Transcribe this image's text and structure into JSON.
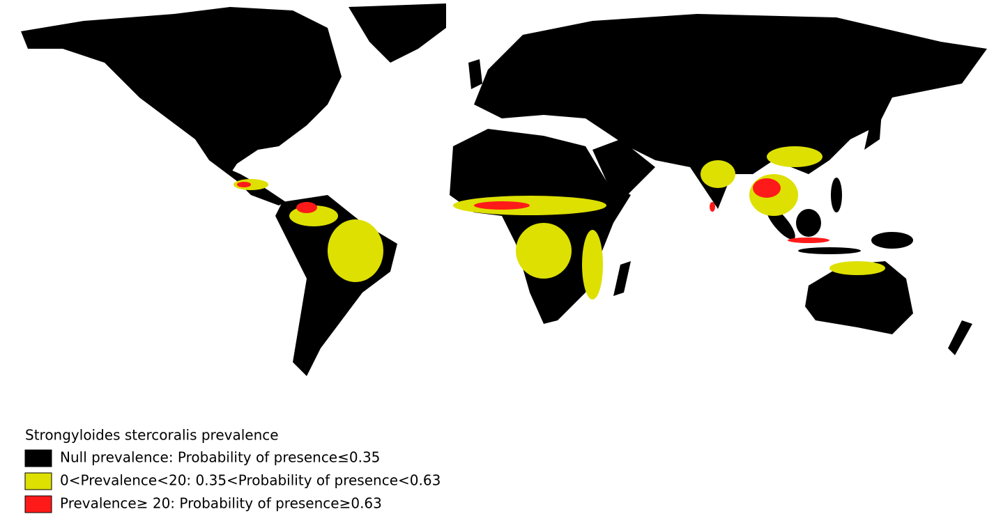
{
  "legend": {
    "title": "Strongyloides stercoralis prevalence",
    "items": [
      {
        "label": "Null prevalence: Probability of presence≤0.35",
        "color": "#000000"
      },
      {
        "label": "0<Prevalence<20: 0.35<Probability of presence<0.63",
        "color": "#dde000"
      },
      {
        "label": "Prevalence≥ 20: Probability of presence≥0.63",
        "color": "#ff1a1a"
      }
    ]
  }
}
